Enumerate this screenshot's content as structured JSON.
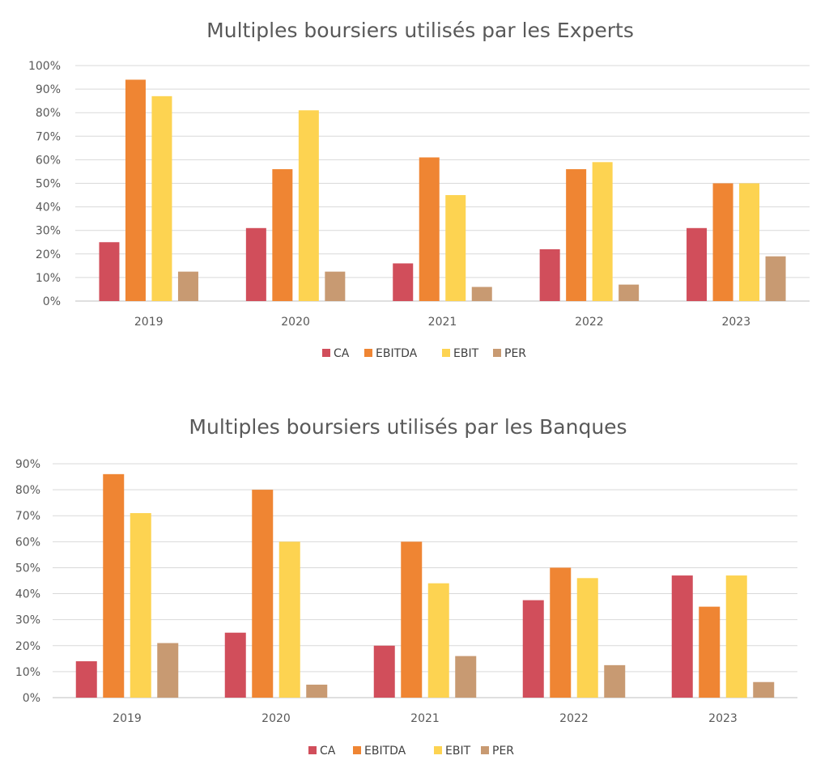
{
  "colors": {
    "CA": "#d14e5b",
    "EBITDA": "#ef8533",
    "EBIT": "#fdd351",
    "PER": "#c89a72"
  },
  "chart_data": [
    {
      "type": "bar",
      "title": "Multiples boursiers utilisés par les Experts",
      "categories": [
        "2019",
        "2020",
        "2021",
        "2022",
        "2023"
      ],
      "ylim": [
        0,
        100
      ],
      "y_ticks": [
        "0%",
        "10%",
        "20%",
        "30%",
        "40%",
        "50%",
        "60%",
        "70%",
        "80%",
        "90%",
        "100%"
      ],
      "grid": true,
      "legend": "bottom",
      "series": [
        {
          "name": "CA",
          "values": [
            25,
            31,
            16,
            22,
            31
          ]
        },
        {
          "name": "EBITDA",
          "values": [
            94,
            56,
            61,
            56,
            50
          ]
        },
        {
          "name": "EBIT",
          "values": [
            87,
            81,
            45,
            59,
            50
          ]
        },
        {
          "name": "PER",
          "values": [
            12.5,
            12.5,
            6,
            7,
            19
          ]
        }
      ]
    },
    {
      "type": "bar",
      "title": "Multiples boursiers utilisés par les Banques",
      "categories": [
        "2019",
        "2020",
        "2021",
        "2022",
        "2023"
      ],
      "ylim": [
        0,
        90
      ],
      "y_ticks": [
        "0%",
        "10%",
        "20%",
        "30%",
        "40%",
        "50%",
        "60%",
        "70%",
        "80%",
        "90%"
      ],
      "grid": true,
      "legend": "bottom",
      "series": [
        {
          "name": "CA",
          "values": [
            14,
            25,
            20,
            37.5,
            47
          ]
        },
        {
          "name": "EBITDA",
          "values": [
            86,
            80,
            60,
            50,
            35
          ]
        },
        {
          "name": "EBIT",
          "values": [
            71,
            60,
            44,
            46,
            47
          ]
        },
        {
          "name": "PER",
          "values": [
            21,
            5,
            16,
            12.5,
            6
          ]
        }
      ]
    }
  ]
}
